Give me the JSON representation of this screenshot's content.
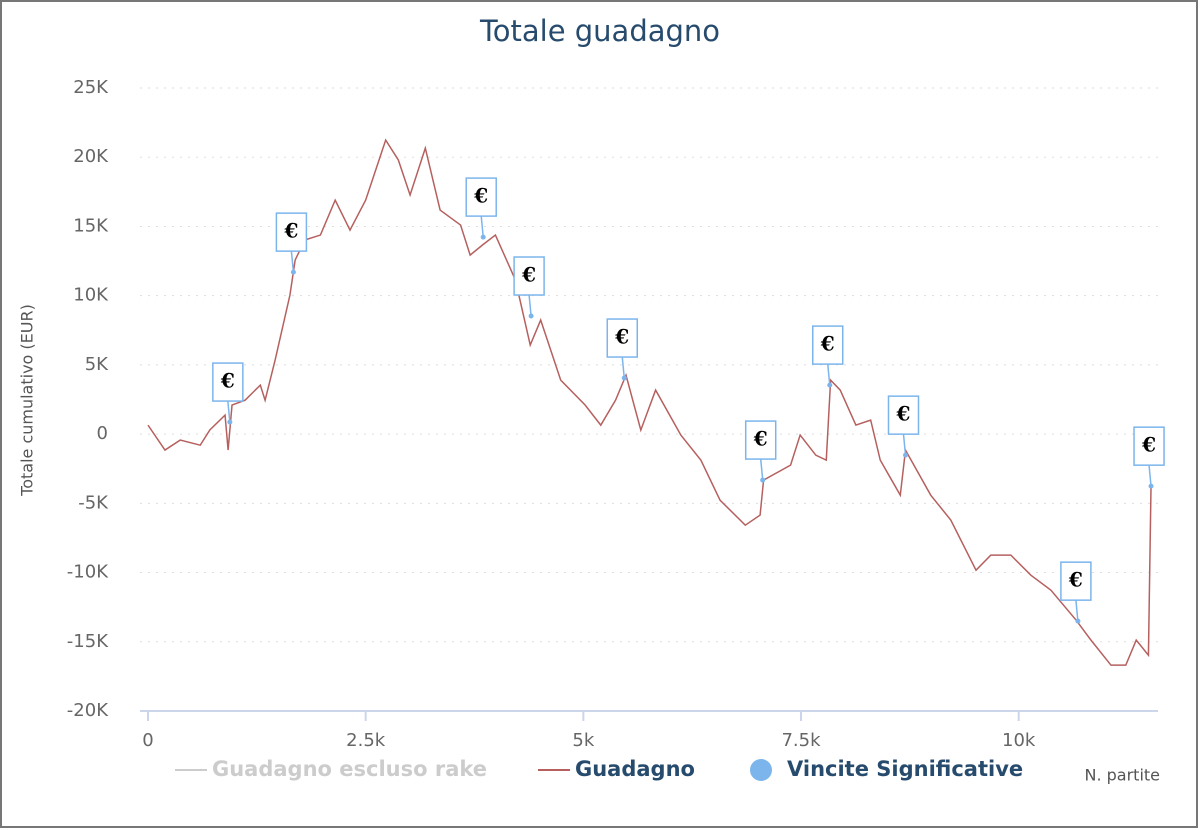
{
  "chart_data": {
    "type": "line",
    "title": "Totale guadagno",
    "x_label": "N. partite",
    "y_label": "Totale cumulativo (EUR)",
    "marker_label": "€",
    "xlim": [
      0,
      11600
    ],
    "ylim": [
      -20000,
      25000
    ],
    "xticks": [
      0,
      {
        "value": 2500,
        "label": "2.5k"
      },
      {
        "value": 5000,
        "label": "5k"
      },
      {
        "value": 7500,
        "label": "7.5k"
      },
      {
        "value": 10000,
        "label": "10k"
      }
    ],
    "yticks": [
      {
        "value": -20000,
        "label": "-20K"
      },
      {
        "value": -15000,
        "label": "-15K"
      },
      {
        "value": -10000,
        "label": "-10K"
      },
      {
        "value": -5000,
        "label": "-5K"
      },
      0,
      {
        "value": 5000,
        "label": "5K"
      },
      {
        "value": 10000,
        "label": "10K"
      },
      {
        "value": 15000,
        "label": "15K"
      },
      {
        "value": 20000,
        "label": "20K"
      },
      {
        "value": 25000,
        "label": "25K"
      }
    ],
    "grid": true,
    "series": [
      {
        "name": "Guadagno escluso rake",
        "color": "#cccccc",
        "visible": false
      },
      {
        "name": "Guadagno",
        "color": "#b5605f",
        "type": "line",
        "x": [
          0,
          195,
          370,
          600,
          710,
          885,
          920,
          965,
          1115,
          1290,
          1345,
          1460,
          1630,
          1690,
          1800,
          1980,
          2150,
          2320,
          2500,
          2730,
          2875,
          3010,
          3185,
          3355,
          3590,
          3700,
          3840,
          3990,
          4220,
          4390,
          4510,
          4740,
          5020,
          5200,
          5370,
          5490,
          5660,
          5830,
          6120,
          6350,
          6570,
          6860,
          7030,
          7070,
          7380,
          7490,
          7670,
          7790,
          7840,
          7950,
          8130,
          8300,
          8410,
          8640,
          8700,
          8990,
          9220,
          9510,
          9680,
          9910,
          10140,
          10370,
          10660,
          10830,
          11060,
          11230,
          11350,
          11490,
          11520
        ],
        "values": [
          650,
          -1150,
          -430,
          -800,
          300,
          1370,
          -1150,
          2100,
          2450,
          3540,
          2450,
          5350,
          10040,
          12570,
          14020,
          14380,
          16900,
          14740,
          16900,
          21240,
          19800,
          17270,
          20660,
          16180,
          15100,
          12930,
          13650,
          14380,
          11130,
          6430,
          8240,
          3900,
          2100,
          650,
          2450,
          4260,
          290,
          3180,
          -70,
          -1880,
          -4770,
          -6580,
          -5850,
          -3320,
          -2240,
          -70,
          -1520,
          -1880,
          3900,
          3180,
          650,
          1010,
          -1880,
          -4410,
          -1160,
          -4410,
          -6210,
          -9830,
          -8740,
          -8740,
          -10190,
          -11270,
          -13440,
          -14880,
          -16690,
          -16690,
          -14880,
          -15970,
          -3680
        ]
      },
      {
        "name": "Vincite Significative",
        "color": "#7cb5ec",
        "type": "scatter",
        "x": [
          940,
          1670,
          3850,
          4400,
          5470,
          7060,
          7830,
          8700,
          10680,
          11520
        ],
        "values": [
          870,
          11700,
          14230,
          8530,
          4050,
          -3320,
          3540,
          -1520,
          -13510,
          -3760
        ]
      }
    ]
  }
}
